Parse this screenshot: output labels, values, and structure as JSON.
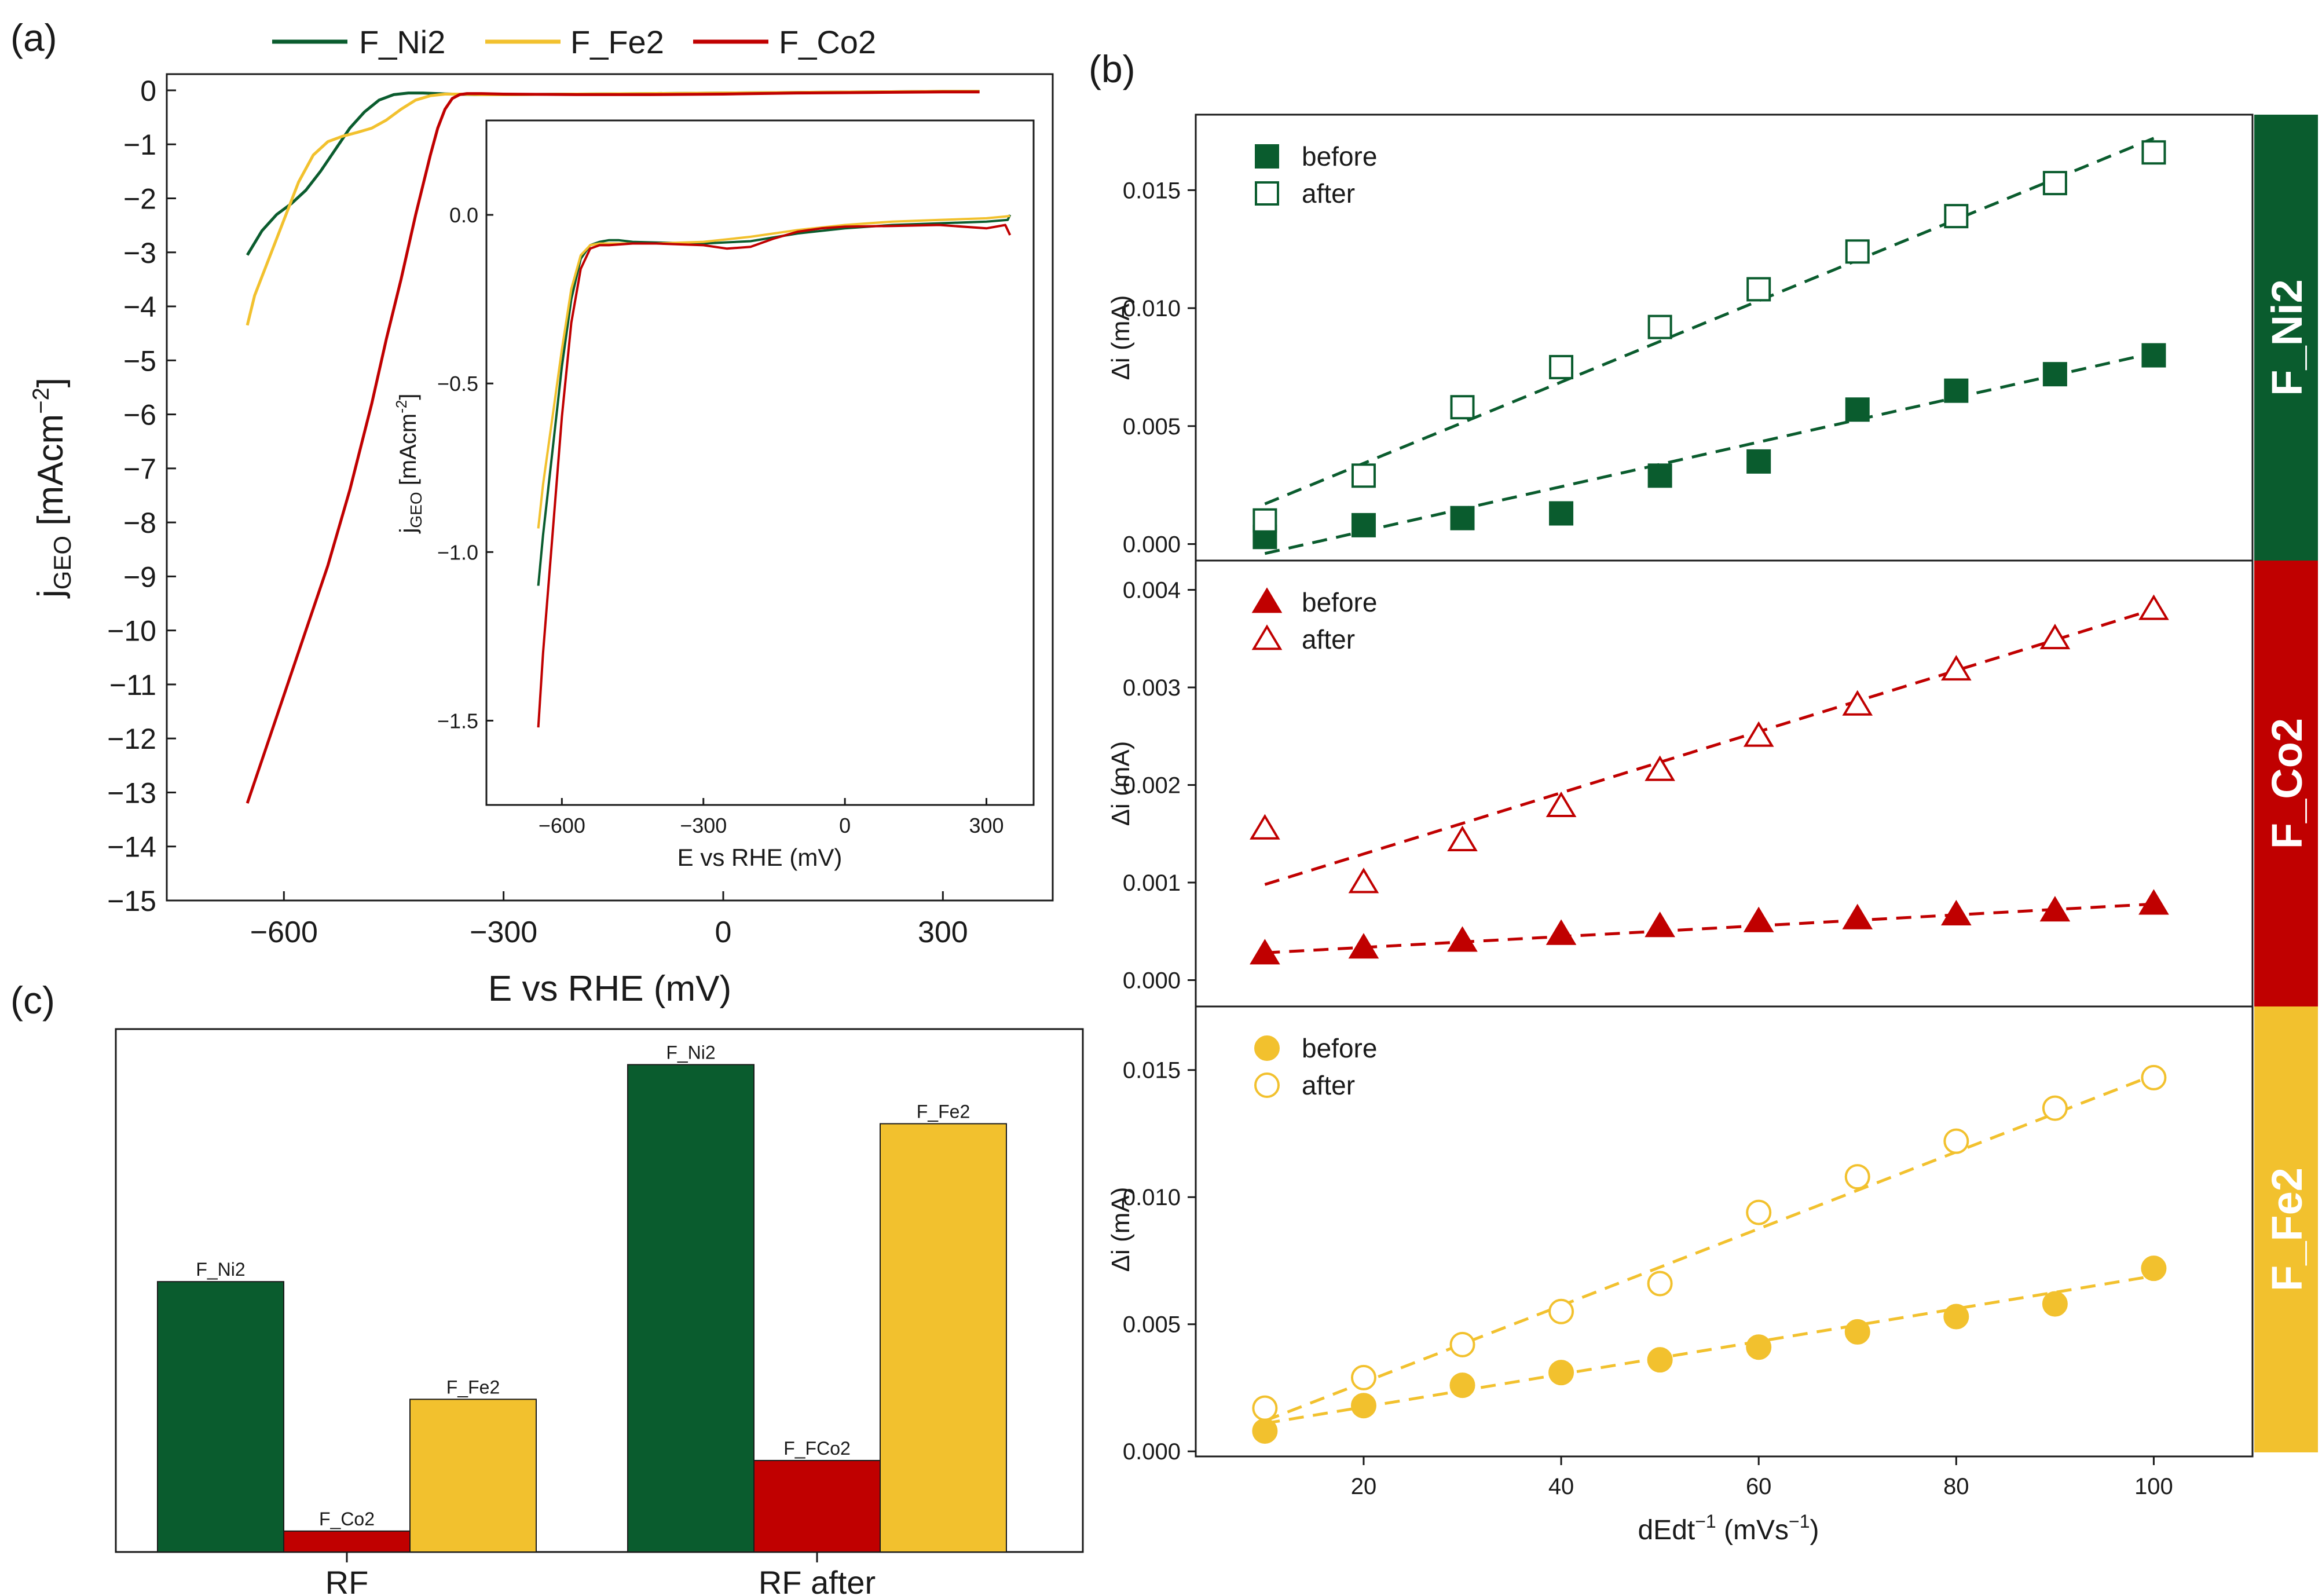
{
  "colors": {
    "F_Ni2": "#0a5c2e",
    "F_Fe2": "#f2c12e",
    "F_Co2": "#c00000"
  },
  "panel_labels": {
    "a": "(a)",
    "b": "(b)",
    "c": "(c)"
  },
  "chart_data": [
    {
      "id": "a",
      "type": "line",
      "xlabel": "E vs RHE (mV)",
      "ylabel_main": "j",
      "ylabel_sub": "GEO",
      "ylabel_rest": " [mAcm",
      "ylabel_sup": "−2",
      "ylabel_end": "]",
      "xlim": [
        -760,
        450
      ],
      "ylim": [
        -15,
        0.3
      ],
      "xticks": [
        -600,
        -300,
        0,
        300
      ],
      "xtick_labels": [
        "−600",
        "−300",
        "0",
        "300"
      ],
      "yticks": [
        0,
        -1,
        -2,
        -3,
        -4,
        -5,
        -6,
        -7,
        -8,
        -9,
        -10,
        -11,
        -12,
        -13,
        -14,
        -15
      ],
      "ytick_labels": [
        "0",
        "−1",
        "−2",
        "−3",
        "−4",
        "−5",
        "−6",
        "−7",
        "−8",
        "−9",
        "−10",
        "−11",
        "−12",
        "−13",
        "−14",
        "−15"
      ],
      "legend": [
        "F_Ni2",
        "F_Fe2",
        "F_Co2"
      ],
      "series": [
        {
          "name": "F_Ni2",
          "x": [
            -650,
            -630,
            -610,
            -590,
            -570,
            -550,
            -530,
            -510,
            -490,
            -470,
            -450,
            -430,
            -410,
            -390,
            -370,
            -340,
            -300,
            -200,
            -100,
            0,
            100,
            200,
            300,
            350
          ],
          "y": [
            -3.05,
            -2.6,
            -2.3,
            -2.1,
            -1.85,
            -1.5,
            -1.1,
            -0.7,
            -0.4,
            -0.18,
            -0.08,
            -0.05,
            -0.05,
            -0.06,
            -0.07,
            -0.08,
            -0.08,
            -0.07,
            -0.06,
            -0.05,
            -0.04,
            -0.03,
            -0.02,
            -0.02
          ]
        },
        {
          "name": "F_Fe2",
          "x": [
            -650,
            -640,
            -620,
            -600,
            -580,
            -560,
            -540,
            -520,
            -500,
            -480,
            -460,
            -440,
            -420,
            -400,
            -380,
            -360,
            -330,
            -300,
            -200,
            -100,
            0,
            100,
            200,
            300,
            350
          ],
          "y": [
            -4.35,
            -3.8,
            -3.1,
            -2.4,
            -1.7,
            -1.2,
            -0.95,
            -0.85,
            -0.78,
            -0.7,
            -0.55,
            -0.35,
            -0.18,
            -0.1,
            -0.07,
            -0.07,
            -0.08,
            -0.08,
            -0.07,
            -0.06,
            -0.05,
            -0.04,
            -0.03,
            -0.02,
            -0.02
          ]
        },
        {
          "name": "F_Co2",
          "x": [
            -650,
            -630,
            -600,
            -570,
            -540,
            -510,
            -480,
            -460,
            -440,
            -420,
            -400,
            -390,
            -380,
            -370,
            -360,
            -350,
            -330,
            -300,
            -200,
            -100,
            0,
            100,
            200,
            300,
            350
          ],
          "y": [
            -13.2,
            -12.4,
            -11.2,
            -10.0,
            -8.8,
            -7.4,
            -5.8,
            -4.6,
            -3.5,
            -2.3,
            -1.2,
            -0.7,
            -0.35,
            -0.15,
            -0.08,
            -0.06,
            -0.06,
            -0.07,
            -0.08,
            -0.08,
            -0.07,
            -0.05,
            -0.04,
            -0.03,
            -0.03
          ]
        }
      ],
      "inset": {
        "xlabel": "E vs RHE (mV)",
        "ylabel_main": "j",
        "ylabel_sub": "GEO",
        "ylabel_rest": " [mAcm",
        "ylabel_sup": "-2",
        "ylabel_end": "]",
        "xlim": [
          -760,
          400
        ],
        "ylim": [
          -1.75,
          0.28
        ],
        "xticks": [
          -600,
          -300,
          0,
          300
        ],
        "xtick_labels": [
          "−600",
          "−300",
          "0",
          "300"
        ],
        "yticks": [
          0.0,
          -0.5,
          -1.0,
          -1.5
        ],
        "ytick_labels": [
          "0.0",
          "−0.5",
          "−1.0",
          "−1.5"
        ],
        "series": [
          {
            "name": "F_Ni2",
            "x": [
              -650,
              -640,
              -620,
              -600,
              -580,
              -560,
              -540,
              -520,
              -500,
              -480,
              -450,
              -400,
              -300,
              -200,
              -100,
              0,
              100,
              200,
              300,
              345,
              350
            ],
            "y": [
              -1.1,
              -0.95,
              -0.7,
              -0.45,
              -0.25,
              -0.13,
              -0.09,
              -0.08,
              -0.075,
              -0.075,
              -0.08,
              -0.082,
              -0.085,
              -0.078,
              -0.055,
              -0.04,
              -0.03,
              -0.025,
              -0.02,
              -0.015,
              -0.0
            ]
          },
          {
            "name": "F_Fe2",
            "x": [
              -650,
              -640,
              -620,
              -600,
              -580,
              -560,
              -540,
              -520,
              -500,
              -450,
              -400,
              -300,
              -200,
              -100,
              0,
              100,
              200,
              300,
              340,
              350
            ],
            "y": [
              -0.93,
              -0.8,
              -0.6,
              -0.4,
              -0.22,
              -0.12,
              -0.09,
              -0.085,
              -0.085,
              -0.085,
              -0.085,
              -0.08,
              -0.065,
              -0.045,
              -0.03,
              -0.02,
              -0.015,
              -0.01,
              -0.005,
              -0.003
            ]
          },
          {
            "name": "F_Co2",
            "x": [
              -650,
              -640,
              -620,
              -600,
              -580,
              -560,
              -540,
              -520,
              -500,
              -450,
              -400,
              -300,
              -250,
              -200,
              -150,
              -100,
              -50,
              0,
              100,
              200,
              300,
              340,
              350
            ],
            "y": [
              -1.52,
              -1.3,
              -0.95,
              -0.6,
              -0.32,
              -0.16,
              -0.1,
              -0.09,
              -0.09,
              -0.085,
              -0.085,
              -0.09,
              -0.1,
              -0.095,
              -0.07,
              -0.05,
              -0.04,
              -0.035,
              -0.033,
              -0.03,
              -0.04,
              -0.03,
              -0.06
            ]
          }
        ]
      }
    },
    {
      "id": "b-Ni2",
      "type": "scatter",
      "strip_label": "F_Ni2",
      "ylabel": "Δi (mA)",
      "xlim": [
        3,
        110
      ],
      "ylim": [
        -0.0007,
        0.0182
      ],
      "yticks": [
        0.0,
        0.005,
        0.01,
        0.015
      ],
      "ytick_labels": [
        "0.000",
        "0.005",
        "0.010",
        "0.015"
      ],
      "marker": "square",
      "legend": [
        "before",
        "after"
      ],
      "x": [
        10,
        20,
        30,
        40,
        50,
        60,
        70,
        80,
        90,
        100
      ],
      "series": [
        {
          "name": "before",
          "values": [
            0.0003,
            0.0008,
            0.0011,
            0.0013,
            0.0029,
            0.0035,
            0.0057,
            0.0065,
            0.0072,
            0.008
          ],
          "fit": [
            [
              10,
              -0.0004
            ],
            [
              100,
              0.0081
            ]
          ]
        },
        {
          "name": "after",
          "values": [
            0.001,
            0.0029,
            0.0058,
            0.0075,
            0.0092,
            0.0108,
            0.0124,
            0.0139,
            0.0153,
            0.0166
          ],
          "fit": [
            [
              10,
              0.0017
            ],
            [
              100,
              0.0172
            ]
          ]
        }
      ]
    },
    {
      "id": "b-Co2",
      "type": "scatter",
      "strip_label": "F_Co2",
      "ylabel": "Δi (mA)",
      "xlim": [
        3,
        110
      ],
      "ylim": [
        -0.00027,
        0.0043
      ],
      "yticks": [
        0.0,
        0.001,
        0.002,
        0.003,
        0.004
      ],
      "ytick_labels": [
        "0.000",
        "0.001",
        "0.002",
        "0.003",
        "0.004"
      ],
      "marker": "triangle",
      "legend": [
        "before",
        "after"
      ],
      "x": [
        10,
        20,
        30,
        40,
        50,
        60,
        70,
        80,
        90,
        100
      ],
      "series": [
        {
          "name": "before",
          "values": [
            0.00027,
            0.00033,
            0.0004,
            0.00047,
            0.00055,
            0.0006,
            0.00063,
            0.00067,
            0.00071,
            0.00078
          ],
          "fit": [
            [
              10,
              0.00028
            ],
            [
              100,
              0.00078
            ]
          ]
        },
        {
          "name": "after",
          "values": [
            0.00155,
            0.001,
            0.00143,
            0.00178,
            0.00215,
            0.0025,
            0.00282,
            0.00318,
            0.0035,
            0.0038
          ],
          "fit": [
            [
              10,
              0.00098
            ],
            [
              100,
              0.0038
            ]
          ]
        }
      ]
    },
    {
      "id": "b-Fe2",
      "type": "scatter",
      "strip_label": "F_Fe2",
      "ylabel": "Δi (mA)",
      "xlabel_main": "dEdt",
      "xlabel_sup1": "−1",
      "xlabel_rest": " (mVs",
      "xlabel_sup2": "−1",
      "xlabel_end": ")",
      "xlim": [
        3,
        110
      ],
      "ylim": [
        -0.0002,
        0.0175
      ],
      "yticks": [
        0.0,
        0.005,
        0.01,
        0.015
      ],
      "ytick_labels": [
        "0.000",
        "0.005",
        "0.010",
        "0.015"
      ],
      "xticks": [
        20,
        40,
        60,
        80,
        100
      ],
      "xtick_labels": [
        "20",
        "40",
        "60",
        "80",
        "100"
      ],
      "marker": "circle",
      "legend": [
        "before",
        "after"
      ],
      "x": [
        10,
        20,
        30,
        40,
        50,
        60,
        70,
        80,
        90,
        100
      ],
      "series": [
        {
          "name": "before",
          "values": [
            0.0008,
            0.0018,
            0.0026,
            0.0031,
            0.0036,
            0.0041,
            0.0047,
            0.0053,
            0.0058,
            0.0072
          ],
          "fit": [
            [
              10,
              0.0011
            ],
            [
              100,
              0.0069
            ]
          ]
        },
        {
          "name": "after",
          "values": [
            0.0017,
            0.0029,
            0.0042,
            0.0055,
            0.0066,
            0.0094,
            0.0108,
            0.0122,
            0.0135,
            0.0147
          ],
          "fit": [
            [
              10,
              0.0012
            ],
            [
              100,
              0.0148
            ]
          ]
        }
      ]
    },
    {
      "id": "c",
      "type": "bar",
      "categories": [
        "RF",
        "RF after"
      ],
      "ylim": [
        0,
        1.0
      ],
      "series": [
        {
          "name": "F_Ni2",
          "values": [
            0.517,
            0.932
          ],
          "labels": [
            "F_Ni2",
            "F_Ni2"
          ]
        },
        {
          "name": "F_Co2",
          "values": [
            0.04,
            0.175
          ],
          "labels": [
            "F_Co2",
            "F_FCo2"
          ]
        },
        {
          "name": "F_Fe2",
          "values": [
            0.292,
            0.819
          ],
          "labels": [
            "F_Fe2",
            "F_Fe2"
          ]
        }
      ]
    }
  ]
}
